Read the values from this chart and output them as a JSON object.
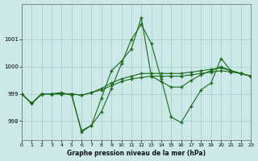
{
  "title": "Graphe pression niveau de la mer (hPa)",
  "bg_color": "#cce8e8",
  "line_color": "#1a6b1a",
  "grid_color": "#aacece",
  "xlim": [
    0,
    23
  ],
  "ylim": [
    997.3,
    1002.3
  ],
  "yticks": [
    998,
    999,
    1000,
    1001
  ],
  "xticks": [
    0,
    1,
    2,
    3,
    4,
    5,
    6,
    7,
    8,
    9,
    10,
    11,
    12,
    13,
    14,
    15,
    16,
    17,
    18,
    19,
    20,
    21,
    22,
    23
  ],
  "figwidth": 3.2,
  "figheight": 2.0,
  "series": [
    [
      999.0,
      998.65,
      999.0,
      999.0,
      999.0,
      999.0,
      997.6,
      997.85,
      998.35,
      999.2,
      1000.1,
      1001.0,
      1001.55,
      1000.85,
      999.55,
      998.15,
      997.95,
      998.55,
      999.15,
      999.4,
      1000.3,
      999.85,
      999.75,
      999.65
    ],
    [
      999.0,
      998.65,
      999.0,
      999.0,
      999.05,
      998.95,
      997.65,
      997.85,
      998.85,
      999.85,
      1000.2,
      1000.65,
      1001.8,
      999.65,
      999.45,
      999.25,
      999.25,
      999.5,
      999.7,
      999.85,
      1000.0,
      999.85,
      999.75,
      999.65
    ],
    [
      999.0,
      998.65,
      999.0,
      999.0,
      999.0,
      999.0,
      998.95,
      999.05,
      999.15,
      999.3,
      999.45,
      999.55,
      999.6,
      999.65,
      999.65,
      999.65,
      999.65,
      999.7,
      999.75,
      999.8,
      999.85,
      999.8,
      999.75,
      999.65
    ],
    [
      999.0,
      998.65,
      999.0,
      999.0,
      999.0,
      999.0,
      998.95,
      999.05,
      999.2,
      999.4,
      999.55,
      999.65,
      999.75,
      999.75,
      999.75,
      999.75,
      999.75,
      999.8,
      999.85,
      999.9,
      999.95,
      999.85,
      999.75,
      999.65
    ]
  ]
}
